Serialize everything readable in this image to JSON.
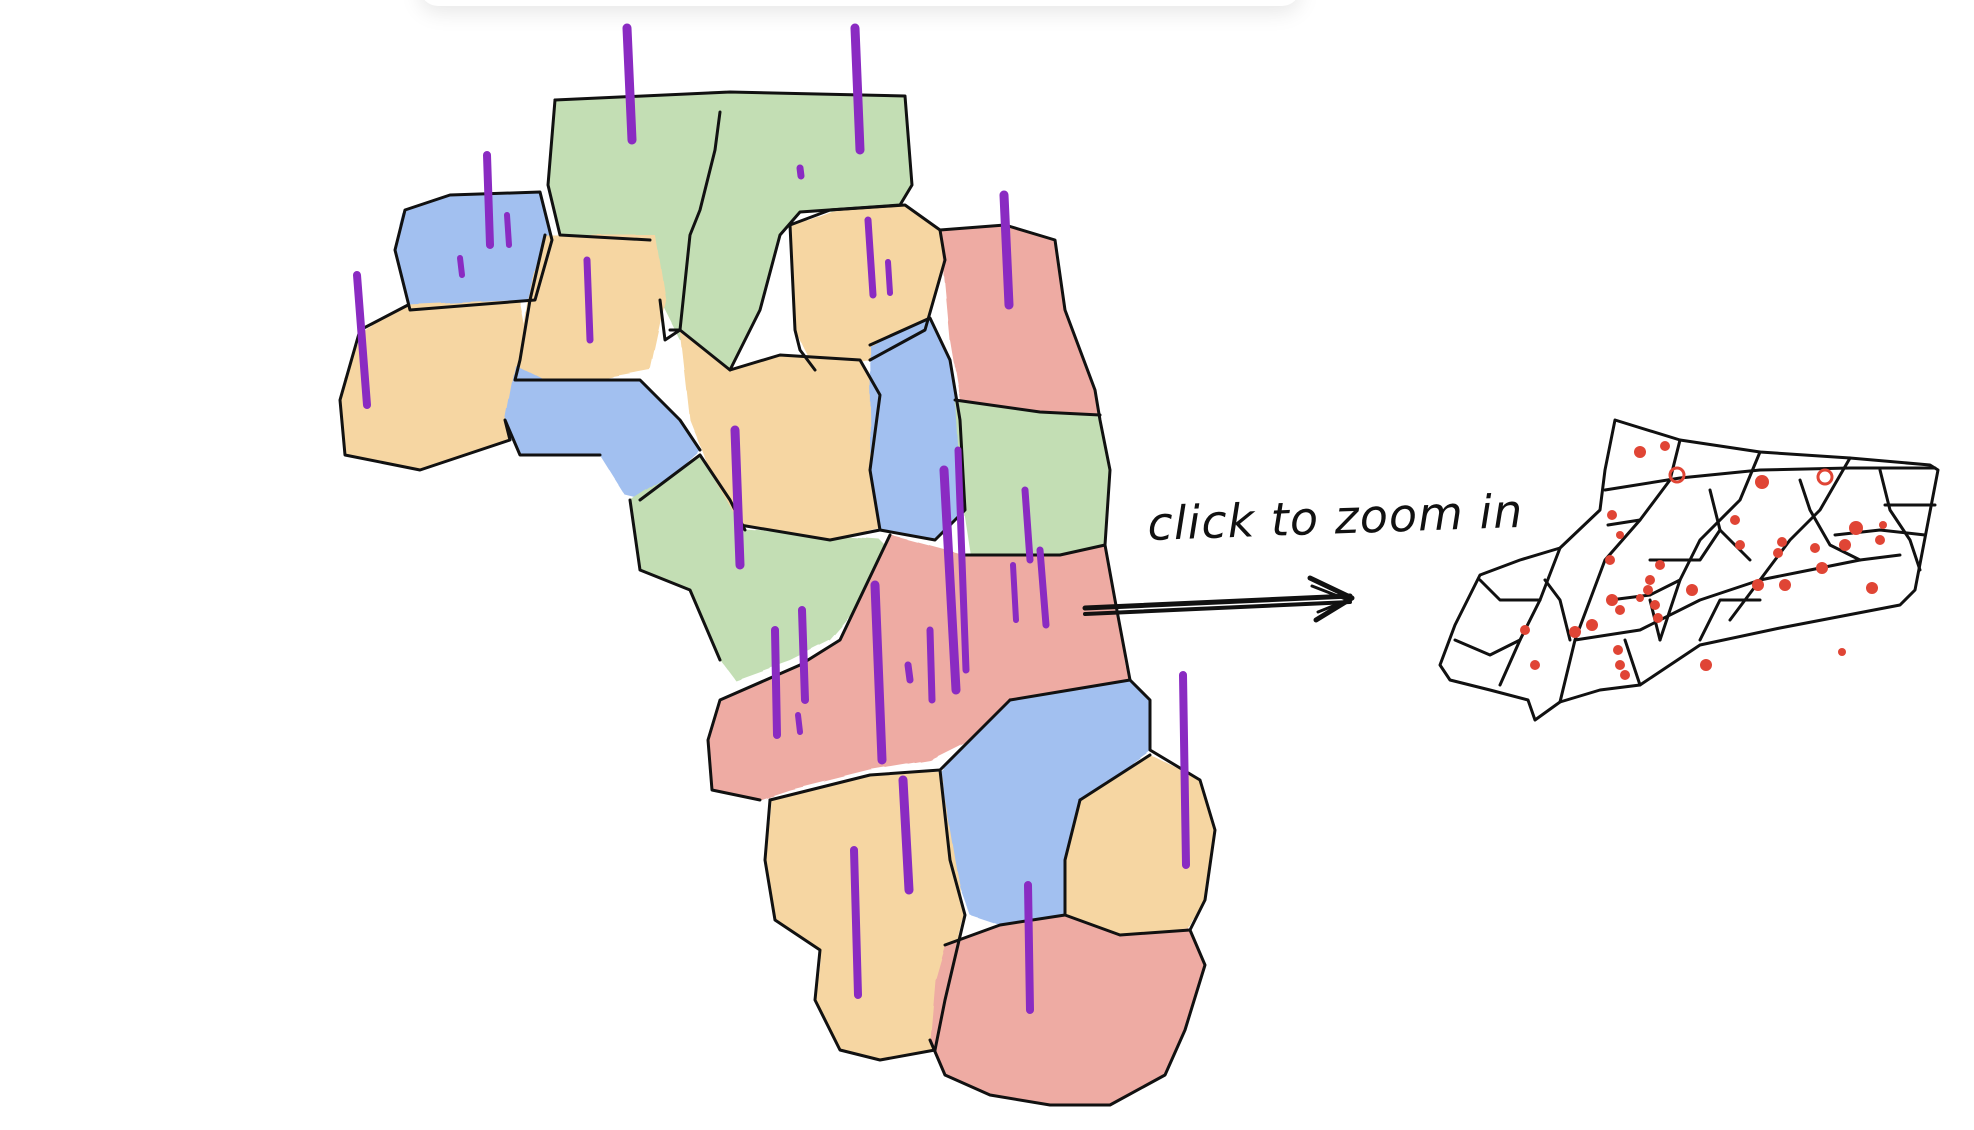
{
  "annotation": {
    "zoom_label": "click to zoom in"
  },
  "colors": {
    "green": "#c3deb4",
    "orange": "#f6d6a2",
    "blue": "#a2c0f0",
    "red": "#eeaba3",
    "spike": "#8a2bc2",
    "dot": "#e04535",
    "ink": "#111111"
  },
  "icons": {
    "arrow": "right-arrow-icon"
  }
}
